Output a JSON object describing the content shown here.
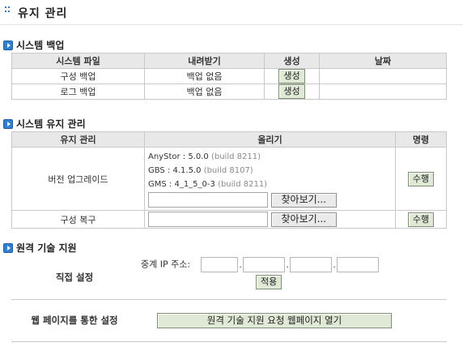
{
  "page": {
    "title": "유지 관리"
  },
  "backup": {
    "section_title": "시스템 백업",
    "headers": [
      "시스템 파일",
      "내려받기",
      "생성",
      "날짜"
    ],
    "rows": [
      {
        "file": "구성 백업",
        "download": "백업 없음",
        "action": "생성",
        "date": ""
      },
      {
        "file": "로그 백업",
        "download": "백업 없음",
        "action": "생성",
        "date": ""
      }
    ]
  },
  "maintenance": {
    "section_title": "시스템 유지 관리",
    "headers": [
      "유지 관리",
      "올리기",
      "명령"
    ],
    "upgrade": {
      "label": "버전 업그레이드",
      "versions": [
        {
          "name": "AnyStor : 5.0.0",
          "build": "(build 8211)"
        },
        {
          "name": "GBS : 4.1.5.0",
          "build": "(build 8107)"
        },
        {
          "name": "GMS : 4_1_5_0-3",
          "build": "(build 8211)"
        }
      ],
      "browse_label": "찾아보기...",
      "command_label": "수행"
    },
    "restore": {
      "label": "구성 복구",
      "browse_label": "찾아보기...",
      "command_label": "수행"
    }
  },
  "remote": {
    "section_title": "원격 기술 지원",
    "direct": {
      "label": "직접 설정",
      "ip_label": "중계 IP 주소:",
      "apply_label": "적용"
    },
    "web": {
      "label": "웹 페이지를 통한 설정",
      "button_label": "원격 기술 지원 요청 웹페이지 열기"
    }
  }
}
